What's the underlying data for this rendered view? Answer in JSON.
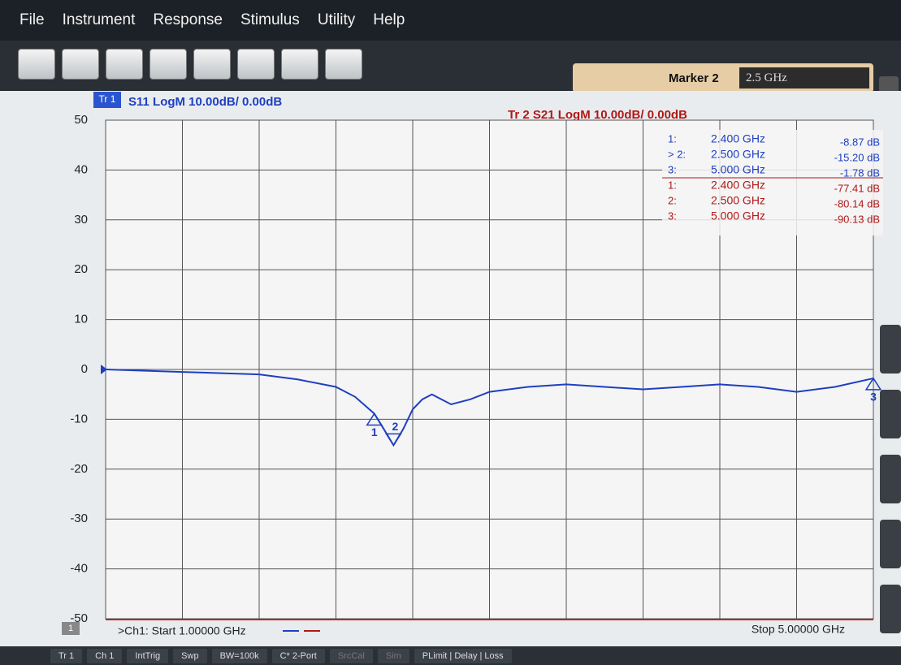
{
  "menu": [
    "File",
    "Instrument",
    "Response",
    "Stimulus",
    "Utility",
    "Help"
  ],
  "marker_box": {
    "label": "Marker 2",
    "value": "2.5 GHz"
  },
  "chart_data": {
    "type": "line",
    "trace1_tag": "Tr 1",
    "title": "S11 LogM 10.00dB/ 0.00dB",
    "subtitle": "Tr 2  S21 LogM 10.00dB/ 0.00dB",
    "x": [
      1.0,
      1.4,
      1.8,
      2.0,
      2.2,
      2.3,
      2.4,
      2.45,
      2.5,
      2.55,
      2.6,
      2.65,
      2.7,
      2.75,
      2.8,
      2.9,
      3.0,
      3.2,
      3.4,
      3.6,
      3.8,
      4.0,
      4.2,
      4.4,
      4.6,
      4.8,
      5.0
    ],
    "values": [
      0,
      -0.5,
      -1,
      -2,
      -3.5,
      -5.5,
      -8.87,
      -12,
      -15.2,
      -12,
      -8,
      -6,
      -5,
      -6,
      -7,
      -6,
      -4.5,
      -3.5,
      -3,
      -3.5,
      -4,
      -3.5,
      -3,
      -3.5,
      -4.5,
      -3.5,
      -1.78
    ],
    "color": "#1e3fc0",
    "xlim": [
      1,
      5
    ],
    "ylim": [
      -50,
      50
    ],
    "yticks": [
      -50,
      -40,
      -30,
      -20,
      -10,
      0,
      10,
      20,
      30,
      40,
      50
    ],
    "xgrid": [
      1,
      1.4,
      1.8,
      2.2,
      2.6,
      3.0,
      3.4,
      3.8,
      4.2,
      4.6,
      5.0
    ],
    "grid": true,
    "markers": [
      {
        "label": "1",
        "x": 2.4,
        "y": -8.87
      },
      {
        "label": "2",
        "x": 2.5,
        "y": -15.2
      },
      {
        "label": "3",
        "x": 5.0,
        "y": -1.78
      }
    ],
    "marker_table": [
      {
        "num": "1:",
        "freq": "2.400 GHz",
        "value": "-8.87 dB",
        "trace": 1
      },
      {
        "num": "> 2:",
        "freq": "2.500 GHz",
        "value": "-15.20 dB",
        "trace": 1
      },
      {
        "num": "3:",
        "freq": "5.000 GHz",
        "value": "-1.78 dB",
        "trace": 1
      },
      {
        "num": "1:",
        "freq": "2.400 GHz",
        "value": "-77.41 dB",
        "trace": 2
      },
      {
        "num": "2:",
        "freq": "2.500 GHz",
        "value": "-80.14 dB",
        "trace": 2
      },
      {
        "num": "3:",
        "freq": "5.000 GHz",
        "value": "-90.13 dB",
        "trace": 2
      }
    ],
    "channel_tag": "1",
    "start_label": ">Ch1: Start  1.00000 GHz",
    "stop_label": "Stop  5.00000 GHz"
  },
  "status_bar": [
    "Tr 1",
    "Ch 1",
    "IntTrig",
    "Swp",
    "BW=100k",
    "C* 2-Port",
    "SrcCal",
    "Sim",
    "PLimit | Delay | Loss"
  ]
}
